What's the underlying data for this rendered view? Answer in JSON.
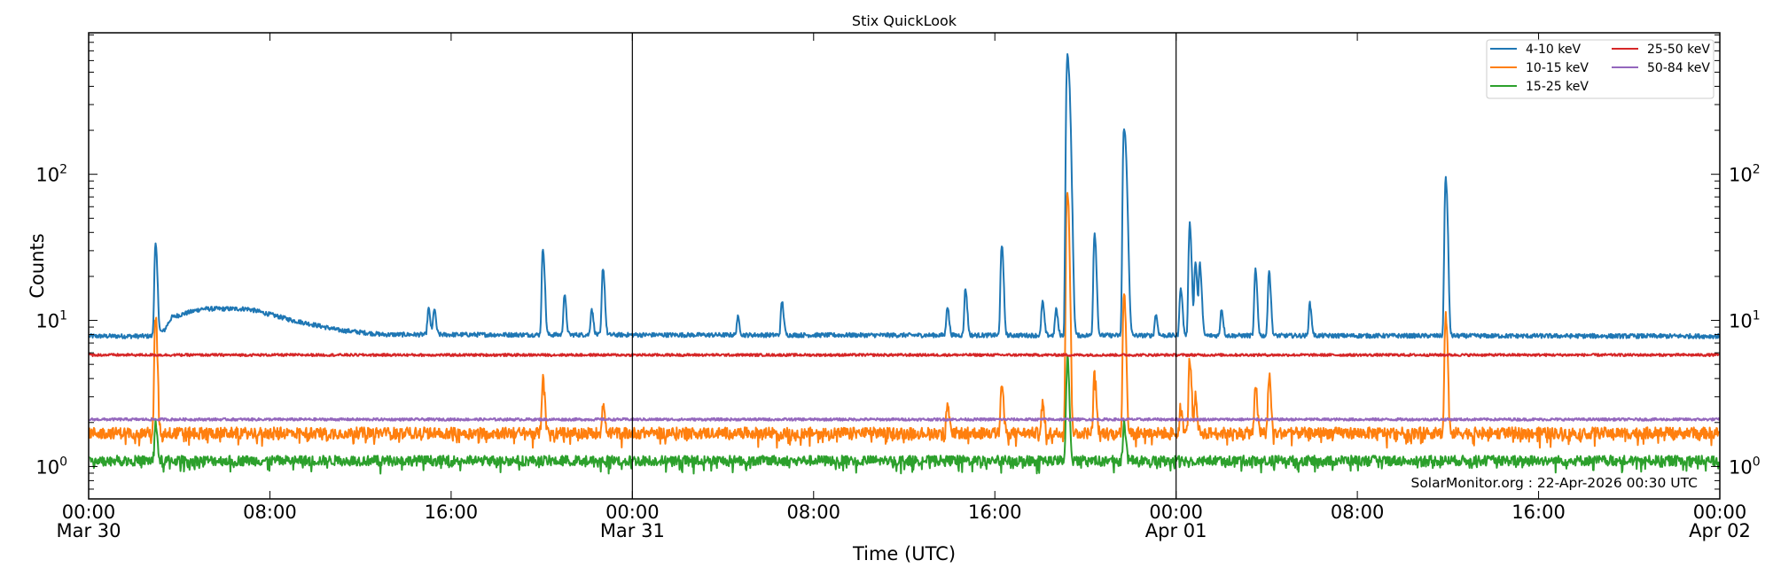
{
  "chart_data": {
    "type": "line",
    "title": "Stix QuickLook",
    "xlabel": "Time (UTC)",
    "ylabel": "Counts",
    "yscale": "log",
    "ylim": [
      0.6,
      930
    ],
    "xlim": [
      "2026-03-30T00:00",
      "2026-04-02T00:00"
    ],
    "grid": false,
    "legend_position": "top-right",
    "x_ticks": [
      {
        "time": "00:00",
        "date": "Mar 30"
      },
      {
        "time": "08:00",
        "date": ""
      },
      {
        "time": "16:00",
        "date": ""
      },
      {
        "time": "00:00",
        "date": "Mar 31"
      },
      {
        "time": "08:00",
        "date": ""
      },
      {
        "time": "16:00",
        "date": ""
      },
      {
        "time": "00:00",
        "date": "Apr 01"
      },
      {
        "time": "08:00",
        "date": ""
      },
      {
        "time": "16:00",
        "date": ""
      },
      {
        "time": "00:00",
        "date": "Apr 02"
      }
    ],
    "y_ticks": [
      {
        "value": 1,
        "base": "10",
        "exp": "0"
      },
      {
        "value": 10,
        "base": "10",
        "exp": "1"
      },
      {
        "value": 100,
        "base": "10",
        "exp": "2"
      }
    ],
    "day_boundaries": [
      "2026-03-31T00:00",
      "2026-04-01T00:00"
    ],
    "series": [
      {
        "name": "4-10 keV",
        "color": "#1f77b4",
        "background": [
          [
            "2026-03-30T00:00",
            7.8
          ],
          [
            "2026-03-30T02:48",
            7.8
          ],
          [
            "2026-03-30T03:20",
            8.5
          ],
          [
            "2026-03-30T03:40",
            10.5
          ],
          [
            "2026-03-30T05:00",
            12
          ],
          [
            "2026-03-30T07:00",
            12
          ],
          [
            "2026-03-30T09:00",
            10
          ],
          [
            "2026-03-30T11:00",
            8.6
          ],
          [
            "2026-03-30T13:00",
            8
          ],
          [
            "2026-04-02T00:00",
            7.8
          ]
        ],
        "peaks": [
          [
            "2026-03-30T02:57",
            33
          ],
          [
            "2026-03-30T15:00",
            12
          ],
          [
            "2026-03-30T15:15",
            12
          ],
          [
            "2026-03-30T20:03",
            31
          ],
          [
            "2026-03-30T21:00",
            15
          ],
          [
            "2026-03-30T22:12",
            12
          ],
          [
            "2026-03-30T22:42",
            23
          ],
          [
            "2026-03-31T04:39",
            10.5
          ],
          [
            "2026-03-31T06:36",
            13.5
          ],
          [
            "2026-03-31T13:54",
            12.5
          ],
          [
            "2026-03-31T14:42",
            16.5
          ],
          [
            "2026-03-31T16:18",
            33
          ],
          [
            "2026-03-31T18:06",
            13.5
          ],
          [
            "2026-03-31T18:42",
            12
          ],
          [
            "2026-03-31T19:12",
            650
          ],
          [
            "2026-03-31T20:24",
            40
          ],
          [
            "2026-03-31T21:42",
            210
          ],
          [
            "2026-03-31T23:06",
            11
          ],
          [
            "2026-04-01T00:12",
            17
          ],
          [
            "2026-04-01T00:36",
            46
          ],
          [
            "2026-04-01T00:51",
            25
          ],
          [
            "2026-04-01T01:03",
            24
          ],
          [
            "2026-04-01T02:00",
            12
          ],
          [
            "2026-04-01T03:30",
            22
          ],
          [
            "2026-04-01T04:06",
            22
          ],
          [
            "2026-04-01T05:54",
            13
          ],
          [
            "2026-04-01T11:54",
            95
          ]
        ]
      },
      {
        "name": "10-15 keV",
        "color": "#ff7f0e",
        "background": [
          [
            "2026-03-30T00:00",
            1.7
          ],
          [
            "2026-04-02T00:00",
            1.7
          ]
        ],
        "peaks": [
          [
            "2026-03-30T02:57",
            10.5
          ],
          [
            "2026-03-30T20:03",
            4.2
          ],
          [
            "2026-03-30T22:42",
            2.7
          ],
          [
            "2026-03-31T13:54",
            2.6
          ],
          [
            "2026-03-31T16:18",
            3.7
          ],
          [
            "2026-03-31T18:06",
            2.7
          ],
          [
            "2026-03-31T19:12",
            80
          ],
          [
            "2026-03-31T20:24",
            4.5
          ],
          [
            "2026-03-31T21:42",
            16
          ],
          [
            "2026-04-01T00:12",
            2.6
          ],
          [
            "2026-04-01T00:36",
            5.5
          ],
          [
            "2026-04-01T00:51",
            3
          ],
          [
            "2026-04-01T03:30",
            3.7
          ],
          [
            "2026-04-01T04:06",
            4.3
          ],
          [
            "2026-04-01T11:54",
            11
          ]
        ]
      },
      {
        "name": "15-25 keV",
        "color": "#2ca02c",
        "background": [
          [
            "2026-03-30T00:00",
            1.1
          ],
          [
            "2026-04-02T00:00",
            1.1
          ]
        ],
        "peaks": [
          [
            "2026-03-30T02:57",
            2
          ],
          [
            "2026-03-31T19:12",
            5.5
          ],
          [
            "2026-03-31T21:42",
            2
          ]
        ]
      },
      {
        "name": "25-50 keV",
        "color": "#d62728",
        "background": [
          [
            "2026-03-30T00:00",
            5.8
          ],
          [
            "2026-04-02T00:00",
            5.8
          ]
        ],
        "peaks": []
      },
      {
        "name": "50-84 keV",
        "color": "#9467bd",
        "background": [
          [
            "2026-03-30T00:00",
            2.1
          ],
          [
            "2026-04-02T00:00",
            2.1
          ]
        ],
        "peaks": []
      }
    ],
    "annotation": "SolarMonitor.org : 22-Apr-2026 00:30 UTC"
  }
}
